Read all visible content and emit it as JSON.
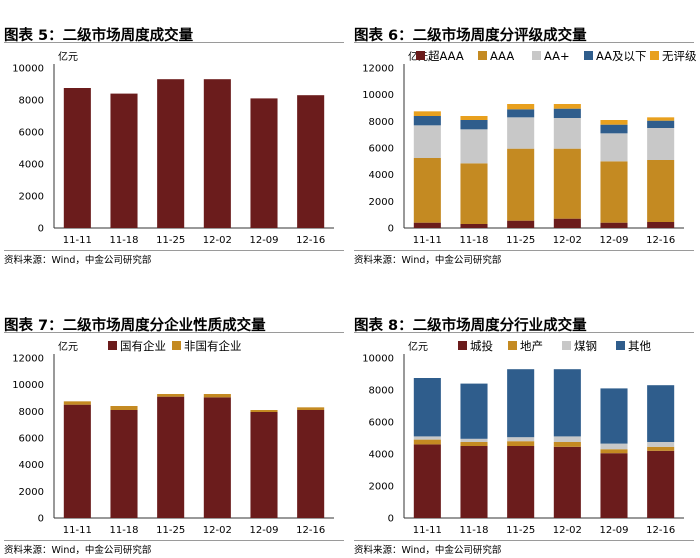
{
  "colors": {
    "maroon": "#6b1c1c",
    "gold": "#c48a22",
    "lightgray": "#c8c8c8",
    "navy": "#2f5d8c",
    "orange": "#e8a01e"
  },
  "panels": [
    {
      "title": "图表 5：二级市场周度成交量",
      "source": "资料来源：Wind，中金公司研究部",
      "unit": "亿元"
    },
    {
      "title": "图表 6：二级市场周度分评级成交量",
      "source": "资料来源：Wind，中金公司研究部",
      "unit": "亿元"
    },
    {
      "title": "图表 7：二级市场周度分企业性质成交量",
      "source": "资料来源：Wind，中金公司研究部",
      "unit": "亿元"
    },
    {
      "title": "图表 8：二级市场周度分行业成交量",
      "source": "资料来源：Wind，中金公司研究部",
      "unit": "亿元"
    }
  ],
  "chart_data": [
    {
      "type": "bar",
      "title": "二级市场周度成交量",
      "ylabel": "亿元",
      "categories": [
        "11-11",
        "11-18",
        "11-25",
        "12-02",
        "12-09",
        "12-16"
      ],
      "series": [
        {
          "values": [
            8750,
            8400,
            9300,
            9300,
            8100,
            8300
          ],
          "color": "#6b1c1c"
        }
      ],
      "ylim": [
        0,
        10000
      ],
      "yticks": [
        0,
        2000,
        4000,
        6000,
        8000,
        10000
      ],
      "grid": false
    },
    {
      "type": "bar",
      "stacked": true,
      "title": "二级市场周度分评级成交量",
      "ylabel": "亿元",
      "categories": [
        "11-11",
        "11-18",
        "11-25",
        "12-02",
        "12-09",
        "12-16"
      ],
      "series": [
        {
          "name": "超AAA",
          "values": [
            400,
            300,
            550,
            700,
            400,
            450
          ],
          "color": "#6b1c1c"
        },
        {
          "name": "AAA",
          "values": [
            4850,
            4550,
            5400,
            5250,
            4600,
            4650
          ],
          "color": "#c48a22"
        },
        {
          "name": "AA+",
          "values": [
            2450,
            2550,
            2350,
            2300,
            2100,
            2400
          ],
          "color": "#c8c8c8"
        },
        {
          "name": "AA及以下",
          "values": [
            700,
            700,
            600,
            700,
            650,
            550
          ],
          "color": "#2f5d8c"
        },
        {
          "name": "无评级",
          "values": [
            350,
            300,
            400,
            350,
            350,
            250
          ],
          "color": "#e8a01e"
        }
      ],
      "ylim": [
        0,
        12000
      ],
      "yticks": [
        0,
        2000,
        4000,
        6000,
        8000,
        10000,
        12000
      ],
      "legend": "top",
      "grid": false
    },
    {
      "type": "bar",
      "stacked": true,
      "title": "二级市场周度分企业性质成交量",
      "ylabel": "亿元",
      "categories": [
        "11-11",
        "11-18",
        "11-25",
        "12-02",
        "12-09",
        "12-16"
      ],
      "series": [
        {
          "name": "国有企业",
          "values": [
            8500,
            8100,
            9100,
            9050,
            7950,
            8100
          ],
          "color": "#6b1c1c"
        },
        {
          "name": "非国有企业",
          "values": [
            250,
            300,
            200,
            250,
            150,
            200
          ],
          "color": "#c48a22"
        }
      ],
      "ylim": [
        0,
        12000
      ],
      "yticks": [
        0,
        2000,
        4000,
        6000,
        8000,
        10000,
        12000
      ],
      "legend": "top",
      "grid": false
    },
    {
      "type": "bar",
      "stacked": true,
      "title": "二级市场周度分行业成交量",
      "ylabel": "亿元",
      "categories": [
        "11-11",
        "11-18",
        "11-25",
        "12-02",
        "12-09",
        "12-16"
      ],
      "series": [
        {
          "name": "城投",
          "values": [
            4600,
            4500,
            4500,
            4450,
            4050,
            4200
          ],
          "color": "#6b1c1c"
        },
        {
          "name": "地产",
          "values": [
            300,
            250,
            300,
            300,
            250,
            250
          ],
          "color": "#c48a22"
        },
        {
          "name": "煤钢",
          "values": [
            200,
            200,
            250,
            350,
            350,
            300
          ],
          "color": "#c8c8c8"
        },
        {
          "name": "其他",
          "values": [
            3650,
            3450,
            4250,
            4200,
            3450,
            3550
          ],
          "color": "#2f5d8c"
        }
      ],
      "ylim": [
        0,
        10000
      ],
      "yticks": [
        0,
        2000,
        4000,
        6000,
        8000,
        10000
      ],
      "legend": "top",
      "grid": false
    }
  ]
}
